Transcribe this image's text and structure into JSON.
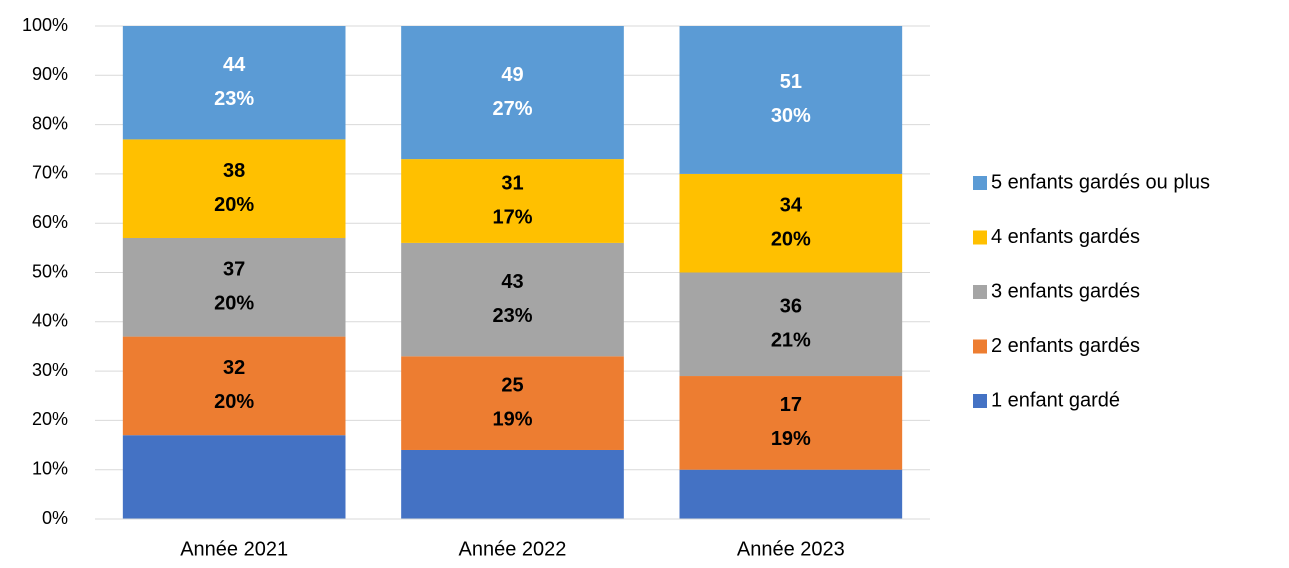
{
  "chart_data": {
    "type": "stacked_bar_100",
    "categories": [
      "Année 2021",
      "Année 2022",
      "Année 2023"
    ],
    "series": [
      {
        "name": "1 enfant gardé",
        "color": "#4472c4",
        "values": [
          17,
          14,
          10
        ]
      },
      {
        "name": "2 enfants gardés",
        "color": "#ed7d31",
        "label_color": "#000000",
        "values": [
          20,
          19,
          19
        ],
        "value_labels": [
          "20%",
          "19%",
          "19%"
        ],
        "counts": [
          32,
          25,
          17
        ]
      },
      {
        "name": "3 enfants gardés",
        "color": "#a5a5a5",
        "label_color": "#000000",
        "values": [
          20,
          23,
          21
        ],
        "value_labels": [
          "20%",
          "23%",
          "21%"
        ],
        "counts": [
          37,
          43,
          36
        ]
      },
      {
        "name": "4 enfants gardés",
        "color": "#ffc000",
        "label_color": "#000000",
        "values": [
          20,
          17,
          20
        ],
        "value_labels": [
          "20%",
          "17%",
          "20%"
        ],
        "counts": [
          38,
          31,
          34
        ]
      },
      {
        "name": "5 enfants gardés ou plus",
        "color": "#5b9bd5",
        "label_color": "#ffffff",
        "values": [
          23,
          27,
          30
        ],
        "value_labels": [
          "23%",
          "27%",
          "30%"
        ],
        "counts": [
          44,
          49,
          51
        ]
      }
    ],
    "ylim": [
      0,
      100
    ],
    "yticks": [
      {
        "value": 0,
        "label": "0%"
      },
      {
        "value": 10,
        "label": "10%"
      },
      {
        "value": 20,
        "label": "20%"
      },
      {
        "value": 30,
        "label": "30%"
      },
      {
        "value": 40,
        "label": "40%"
      },
      {
        "value": 50,
        "label": "50%"
      },
      {
        "value": 60,
        "label": "60%"
      },
      {
        "value": 70,
        "label": "70%"
      },
      {
        "value": 80,
        "label": "80%"
      },
      {
        "value": 90,
        "label": "90%"
      },
      {
        "value": 100,
        "label": "100%"
      }
    ],
    "grid": true,
    "legend": "right"
  }
}
